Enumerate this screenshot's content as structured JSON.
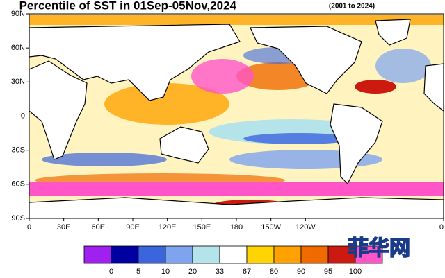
{
  "title": "Percentile of SST in 01Sep-05Nov,2024",
  "subtitle": "(2001 to 2024)",
  "lat_labels": [
    "90N",
    "60N",
    "30N",
    "0",
    "30S",
    "60S",
    "90S"
  ],
  "lon_labels": [
    "0",
    "30E",
    "60E",
    "90E",
    "120E",
    "150E",
    "180",
    "150W",
    "120W",
    "0"
  ],
  "colorbar": {
    "labels": [
      0,
      5,
      10,
      20,
      33,
      67,
      80,
      90,
      95,
      100
    ],
    "colors": [
      "#a020f0",
      "#0000a0",
      "#3c64dc",
      "#7ea4f0",
      "#b4e4ea",
      "#ffffff",
      "#ffd400",
      "#ffa200",
      "#f06a00",
      "#cc1a10",
      "#ff55c8"
    ]
  },
  "watermark": "菲华网"
}
